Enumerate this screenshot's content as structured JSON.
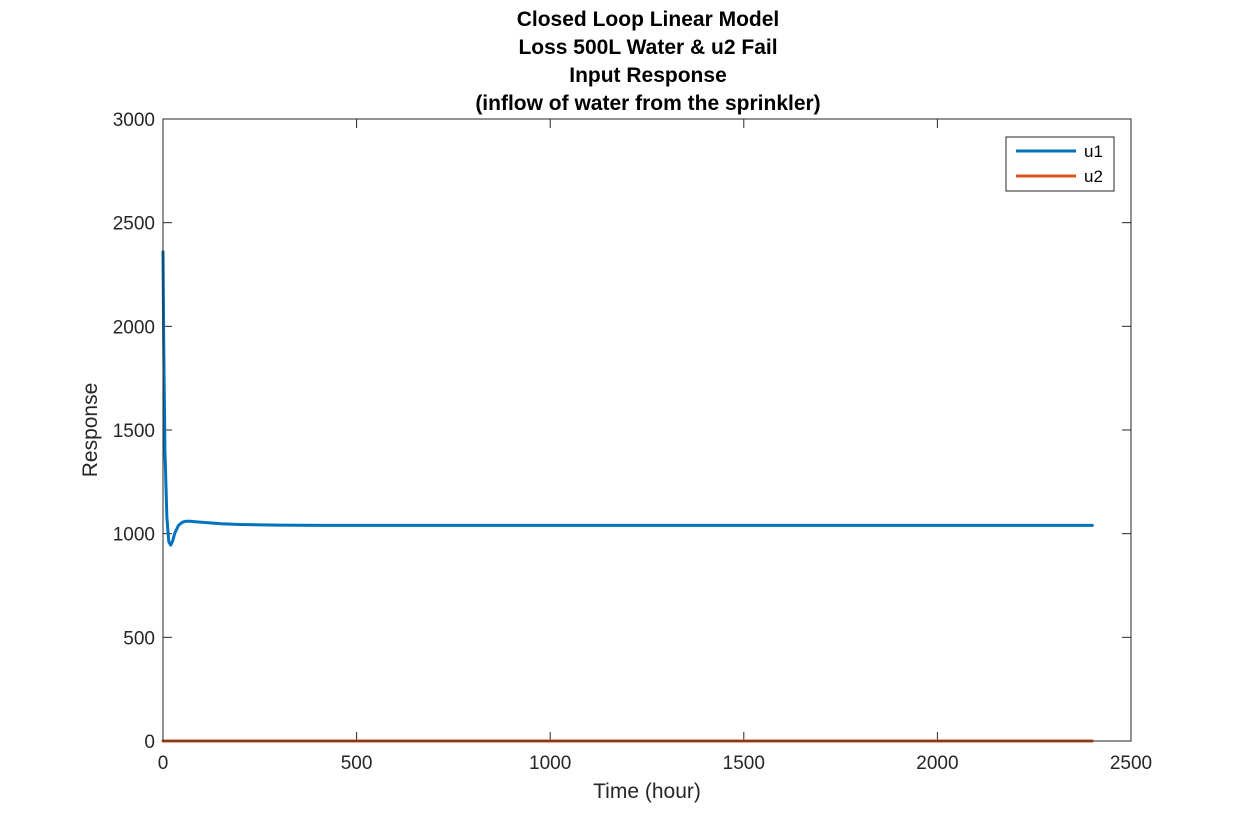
{
  "chart_data": {
    "type": "line",
    "title_lines": [
      "Closed Loop Linear Model",
      "Loss 500L Water & u2 Fail",
      "Input Response",
      "(inflow of water from the sprinkler)"
    ],
    "xlabel": "Time (hour)",
    "ylabel": "Response",
    "xlim": [
      0,
      2500
    ],
    "ylim": [
      0,
      3000
    ],
    "xticks": [
      0,
      500,
      1000,
      1500,
      2000,
      2500
    ],
    "yticks": [
      0,
      500,
      1000,
      1500,
      2000,
      2500,
      3000
    ],
    "xtick_labels": [
      "0",
      "500",
      "1000",
      "1500",
      "2000",
      "2500"
    ],
    "ytick_labels": [
      "0",
      "500",
      "1000",
      "1500",
      "2000",
      "2500",
      "3000"
    ],
    "grid": false,
    "legend_position": "top-right",
    "series": [
      {
        "name": "u1",
        "color": "#0072BD",
        "x": [
          0,
          2,
          5,
          10,
          15,
          20,
          25,
          30,
          40,
          50,
          60,
          70,
          80,
          100,
          150,
          200,
          300,
          400,
          550,
          1000,
          1500,
          2000,
          2400
        ],
        "y": [
          2360,
          1900,
          1400,
          1080,
          960,
          945,
          965,
          1000,
          1040,
          1055,
          1060,
          1060,
          1058,
          1055,
          1048,
          1044,
          1041,
          1040,
          1040,
          1040,
          1040,
          1040,
          1040
        ]
      },
      {
        "name": "u2",
        "color": "#D95319",
        "x": [
          0,
          2400
        ],
        "y": [
          0,
          0
        ]
      }
    ]
  }
}
